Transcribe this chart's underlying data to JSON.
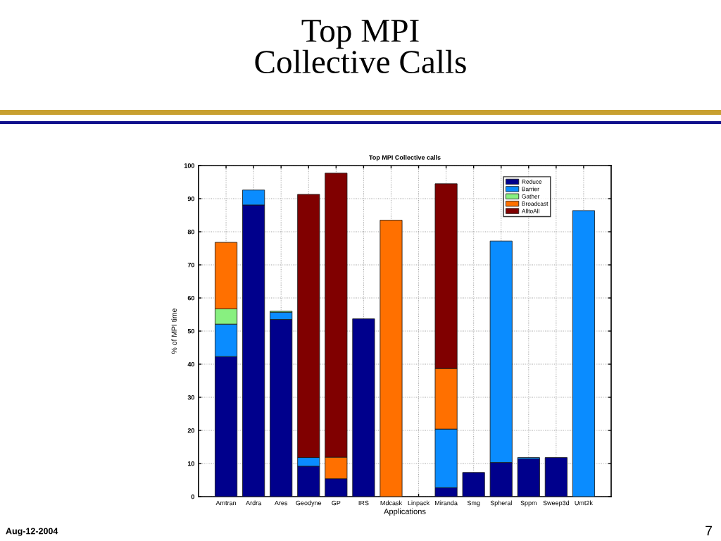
{
  "chart_data": {
    "type": "bar",
    "title": "Top MPI\nCollective Calls",
    "subtitle": "Top MPI Collective calls",
    "xlabel": "Applications",
    "ylabel": "% of MPI time",
    "annotations": [
      "Aug-12-2004",
      "7"
    ],
    "categories": [
      "Amtran",
      "Ardra",
      "Ares",
      "Geodyne",
      "GP",
      "IRS",
      "Mdcask",
      "Linpack",
      "Miranda",
      "Smg",
      "Spheral",
      "Sppm",
      "Sweep3d",
      "Umt2k"
    ],
    "stacked": true,
    "ylim": [
      0,
      100
    ],
    "yticks": [
      0,
      10,
      20,
      30,
      40,
      50,
      60,
      70,
      80,
      90,
      100
    ],
    "grid": true,
    "legend": "top right",
    "series": [
      {
        "name": "Reduce",
        "color": "#00008c",
        "values": [
          42.3,
          88.1,
          53.5,
          9.2,
          5.4,
          53.7,
          null,
          null,
          2.7,
          7.3,
          10.3,
          11.4,
          11.8,
          null
        ]
      },
      {
        "name": "Barrier",
        "color": "#0a8cff",
        "values": [
          9.8,
          4.5,
          2.2,
          2.6,
          null,
          null,
          null,
          null,
          17.7,
          null,
          66.9,
          0.4,
          null,
          86.4
        ]
      },
      {
        "name": "Gather",
        "color": "#88f080",
        "values": [
          4.6,
          null,
          0.3,
          null,
          null,
          null,
          null,
          null,
          null,
          null,
          null,
          null,
          null,
          null
        ]
      },
      {
        "name": "Broadcast",
        "color": "#ff7000",
        "values": [
          20.1,
          null,
          null,
          null,
          6.5,
          null,
          83.5,
          null,
          18.3,
          null,
          null,
          null,
          null,
          null
        ]
      },
      {
        "name": "AlltoAll",
        "color": "#800000",
        "values": [
          null,
          null,
          null,
          79.5,
          85.8,
          null,
          null,
          null,
          55.8,
          null,
          null,
          null,
          null,
          null
        ]
      }
    ]
  }
}
